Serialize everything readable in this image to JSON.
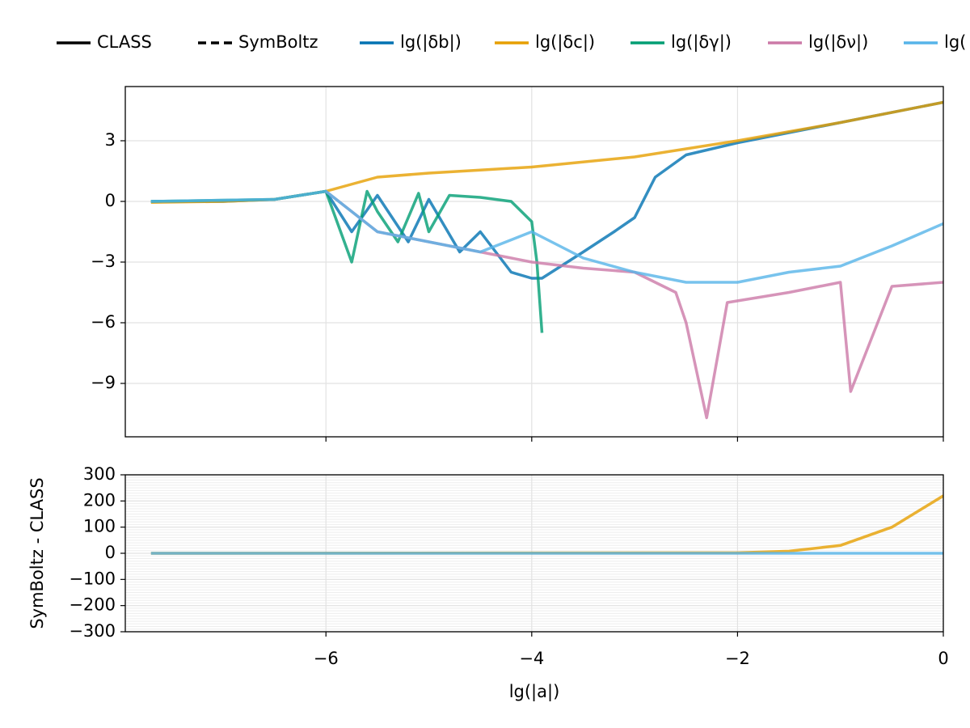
{
  "chart_data": [
    {
      "type": "line",
      "legend_styles": [
        {
          "name": "CLASS",
          "color": "#000000",
          "dash": false
        },
        {
          "name": "SymBoltz",
          "color": "#000000",
          "dash": true
        }
      ],
      "series": [
        {
          "name": "lg(|δb|)",
          "color": "#0072b2",
          "x": [
            -7.7,
            -7,
            -6.5,
            -6,
            -5.75,
            -5.5,
            -5.2,
            -5,
            -4.7,
            -4.5,
            -4.2,
            -4,
            -3.9,
            -3.5,
            -3.2,
            -3,
            -2.8,
            -2.5,
            -2,
            -1,
            0
          ],
          "values": [
            0,
            0,
            0.1,
            0.5,
            -1.5,
            0.3,
            -2,
            0.1,
            -2.5,
            -1.5,
            -3.5,
            -3.8,
            -3.8,
            -2.5,
            -1.5,
            -0.8,
            1.2,
            2.3,
            2.9,
            3.9,
            4.9
          ]
        },
        {
          "name": "lg(|δc|)",
          "color": "#e69f00",
          "x": [
            -7.7,
            -7,
            -6.5,
            -6,
            -5.5,
            -5,
            -4.5,
            -4,
            -3,
            -2,
            -1,
            0
          ],
          "values": [
            -0.05,
            0,
            0.1,
            0.5,
            1.2,
            1.4,
            1.55,
            1.7,
            2.2,
            3.0,
            3.9,
            4.9
          ]
        },
        {
          "name": "lg(|δγ|)",
          "color": "#009e73",
          "x": [
            -7.7,
            -6.5,
            -6,
            -5.75,
            -5.6,
            -5.5,
            -5.3,
            -5.1,
            -5,
            -4.8,
            -4.5,
            -4.2,
            -4,
            -3.95,
            -3.9
          ],
          "values": [
            0,
            0.1,
            0.5,
            -3,
            0.5,
            -0.5,
            -2,
            0.4,
            -1.5,
            0.3,
            0.2,
            0,
            -1,
            -3,
            -6.5
          ]
        },
        {
          "name": "lg(|δν|)",
          "color": "#cc79a7",
          "x": [
            -6,
            -5.5,
            -5,
            -4.5,
            -4,
            -3.5,
            -3,
            -2.6,
            -2.5,
            -2.3,
            -2.1,
            -1.5,
            -1,
            -0.9,
            -0.5,
            0
          ],
          "values": [
            0.5,
            -1.5,
            -2,
            -2.5,
            -3,
            -3.3,
            -3.5,
            -4.5,
            -6,
            -10.7,
            -5,
            -4.5,
            -4,
            -9.4,
            -4.2,
            -4
          ]
        },
        {
          "name": "lg(",
          "color": "#56b4e9",
          "x": [
            -7.7,
            -6.5,
            -6,
            -5.5,
            -5,
            -4.5,
            -4,
            -3.5,
            -3,
            -2.5,
            -2,
            -1.5,
            -1,
            -0.5,
            0
          ],
          "values": [
            0,
            0.1,
            0.5,
            -1.5,
            -2,
            -2.5,
            -1.5,
            -2.8,
            -3.5,
            -4,
            -4,
            -3.5,
            -3.2,
            -2.2,
            -1.1
          ]
        }
      ],
      "xlim": [
        -7.95,
        0
      ],
      "ylim": [
        -11.64,
        5.68
      ],
      "xticks": [
        -6,
        -4,
        -2,
        0
      ],
      "yticks": [
        {
          "value": -9,
          "label": "−9"
        },
        {
          "value": -6,
          "label": "−6"
        },
        {
          "value": -3,
          "label": "−3"
        },
        0,
        3
      ],
      "grid": true
    },
    {
      "type": "line",
      "y_label": "SymBoltz - CLASS",
      "x_label": "lg(|a|)",
      "series": [
        {
          "color": "#e69f00",
          "x": [
            -7.7,
            -2,
            -1.5,
            -1,
            -0.5,
            0
          ],
          "values": [
            0,
            2,
            8,
            30,
            100,
            220
          ]
        },
        {
          "color": "#56b4e9",
          "x": [
            -7.7,
            0
          ],
          "values": [
            0,
            0
          ]
        }
      ],
      "xlim": [
        -7.95,
        0
      ],
      "ylim": [
        -300,
        300
      ],
      "xticks": [
        {
          "value": -6,
          "label": "−6"
        },
        {
          "value": -4,
          "label": "−4"
        },
        {
          "value": -2,
          "label": "−2"
        },
        0
      ],
      "yticks": [
        {
          "value": -300,
          "label": "−300"
        },
        {
          "value": -200,
          "label": "−200"
        },
        {
          "value": -100,
          "label": "−100"
        },
        0,
        100,
        200,
        300
      ],
      "y_minor_step": 10,
      "grid": true
    }
  ]
}
